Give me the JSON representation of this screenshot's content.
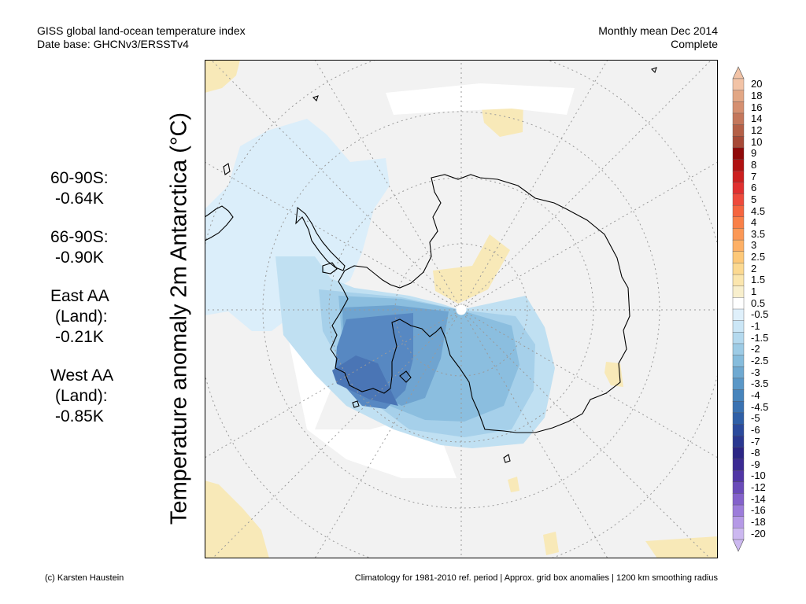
{
  "header": {
    "title": "GISS global land-ocean temperature index",
    "subtitle": "Date base: GHCNv3/ERSSTv4",
    "period": "Monthly mean Dec 2014",
    "status": "Complete"
  },
  "stats": [
    {
      "region": "60-90S:",
      "value": "-0.64K"
    },
    {
      "region": "66-90S:",
      "value": "-0.90K"
    },
    {
      "region": "East AA",
      "region2": "(Land):",
      "value": "-0.21K"
    },
    {
      "region": "West AA",
      "region2": "(Land):",
      "value": "-0.85K"
    }
  ],
  "axis_label": "Temperature anomaly 2m Antarctica (°C)",
  "colorbar": {
    "labels": [
      "20",
      "18",
      "16",
      "14",
      "12",
      "10",
      "9",
      "8",
      "7",
      "6",
      "5",
      "4.5",
      "4",
      "3.5",
      "3",
      "2.5",
      "2",
      "1.5",
      "1",
      "0.5",
      "-0.5",
      "-1",
      "-1.5",
      "-2",
      "-2.5",
      "-3",
      "-3.5",
      "-4",
      "-4.5",
      "-5",
      "-6",
      "-7",
      "-8",
      "-9",
      "-10",
      "-12",
      "-14",
      "-16",
      "-18",
      "-20"
    ],
    "colors": [
      "#f2c3a6",
      "#e2a785",
      "#d58f70",
      "#c4775b",
      "#b46047",
      "#a74a37",
      "#8f0a0a",
      "#b01212",
      "#cc1f1f",
      "#e03030",
      "#ee4a3c",
      "#f5653f",
      "#f98048",
      "#fb9856",
      "#fdb066",
      "#fdc878",
      "#fcd991",
      "#fbe6ae",
      "#f8efcd",
      "#ffffff",
      "#dff0fb",
      "#cbe6f6",
      "#b4d9ee",
      "#9dcbe5",
      "#86bcdc",
      "#6fa9d1",
      "#5a97c7",
      "#4784bc",
      "#3a72b2",
      "#2f5fa7",
      "#2b4a9c",
      "#2a3891",
      "#2c2685",
      "#3b2a93",
      "#5136a5",
      "#6a4bb9",
      "#8462cb",
      "#9c7cda",
      "#b599e6",
      "#ccb8f0"
    ]
  },
  "map_colors": {
    "ocean_bg": "#f2f2f2",
    "no_data": "#ffffff",
    "warm_light": "#f8e9b8",
    "cool_1": "#dbeefa",
    "cool_2": "#c0e0f2",
    "cool_3": "#a6d0ea",
    "cool_4": "#8bbedf",
    "cool_5": "#6fa4d0",
    "cool_6": "#5788c2",
    "cool_7": "#4a75b5",
    "coastline": "#000000",
    "graticule": "#9a9a9a"
  },
  "footer": {
    "credit": "(c) Karsten Haustein",
    "note": "Climatology for 1981-2010 ref. period | Approx. grid box anomalies | 1200 km smoothing radius"
  }
}
